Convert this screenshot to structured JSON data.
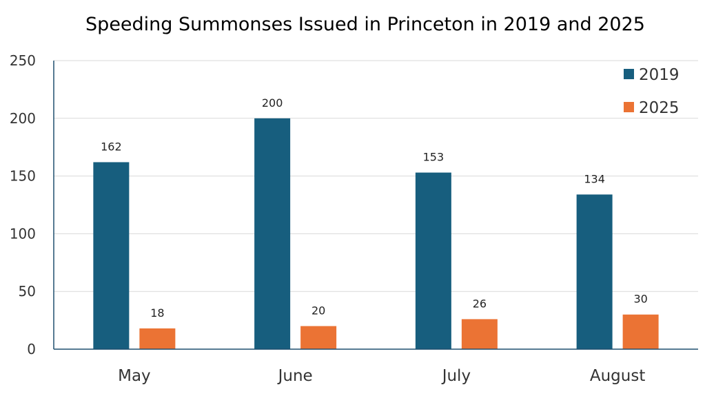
{
  "chart_data": {
    "type": "bar",
    "title": "Speeding Summonses Issued in Princeton in 2019 and 2025",
    "xlabel": "",
    "ylabel": "",
    "categories": [
      "May",
      "June",
      "July",
      "August"
    ],
    "series": [
      {
        "name": "2019",
        "color": "#175e7e",
        "values": [
          162,
          200,
          153,
          134
        ]
      },
      {
        "name": "2025",
        "color": "#eb7334",
        "values": [
          18,
          20,
          26,
          30
        ]
      }
    ],
    "ylim": [
      0,
      250
    ],
    "yticks": [
      0,
      50,
      100,
      150,
      200,
      250
    ],
    "grid": true,
    "legend": "top-right",
    "data_labels": true
  }
}
